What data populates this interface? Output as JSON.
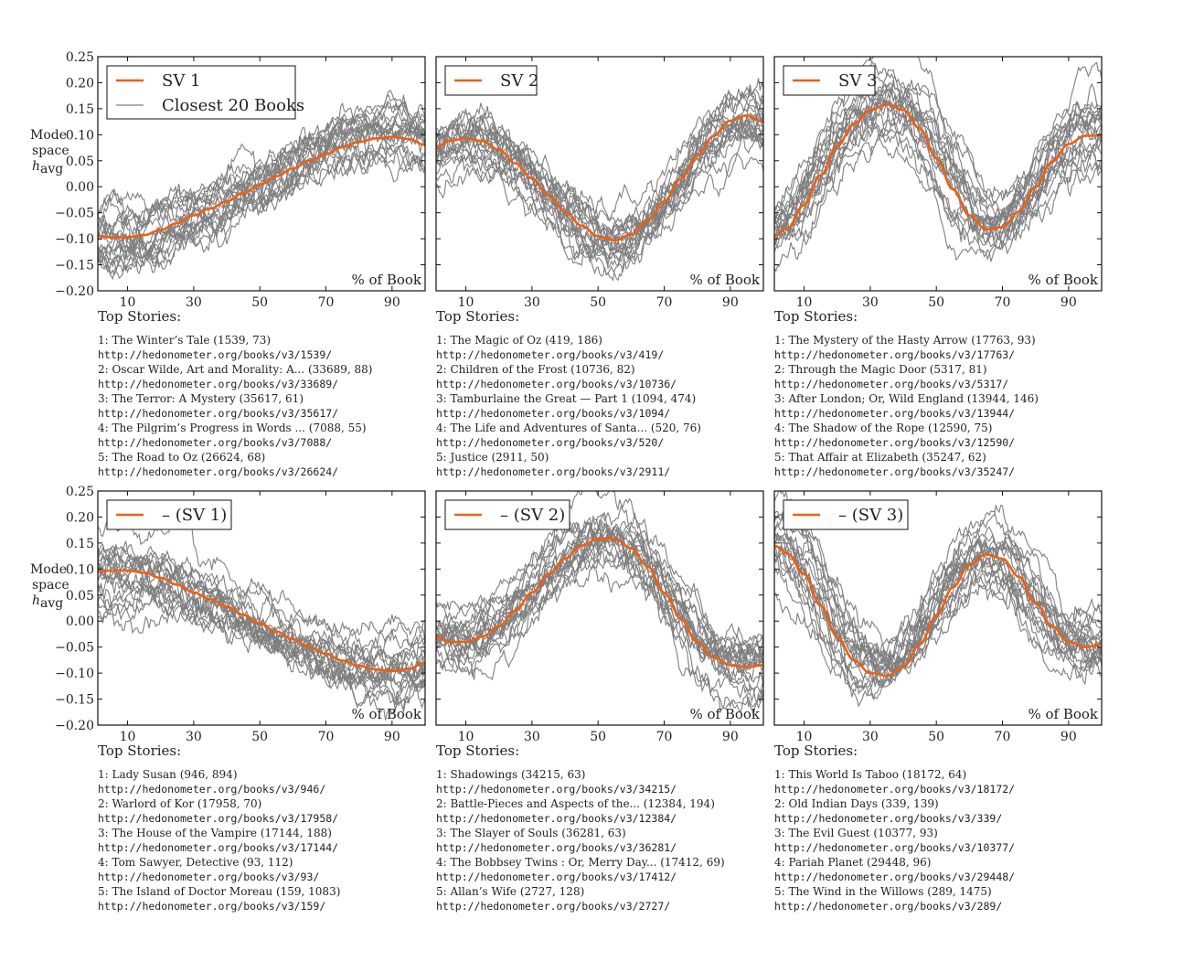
{
  "y_axis_label": {
    "line1": "Mode",
    "line2": "space",
    "line3": "h",
    "line3_sub": "avg"
  },
  "x_axis_annotation": "% of Book",
  "top_stories_header": "Top Stories:",
  "colors": {
    "main_series": "#ee6011",
    "books": "#7f7f7f"
  },
  "chart_data": [
    {
      "type": "line",
      "legend": [
        "SV 1",
        "Closest 20 Books"
      ],
      "ylim": [
        -0.2,
        0.25
      ],
      "xlim": [
        1,
        100
      ],
      "yticks": [
        "0.25",
        "0.20",
        "0.15",
        "0.10",
        "0.05",
        "0.00",
        "−0.05",
        "−0.10",
        "−0.15",
        "−0.20"
      ],
      "xticks": [
        "10",
        "30",
        "50",
        "70",
        "90"
      ],
      "series": [
        {
          "name": "SV 1",
          "x": [
            1,
            5,
            10,
            15,
            20,
            25,
            30,
            35,
            40,
            45,
            50,
            55,
            60,
            65,
            70,
            75,
            80,
            85,
            90,
            95,
            100
          ],
          "y": [
            -0.095,
            -0.097,
            -0.097,
            -0.093,
            -0.083,
            -0.07,
            -0.055,
            -0.042,
            -0.028,
            -0.012,
            0.004,
            0.02,
            0.035,
            0.05,
            0.063,
            0.076,
            0.086,
            0.093,
            0.096,
            0.092,
            0.08
          ]
        }
      ]
    },
    {
      "type": "line",
      "legend": [
        "SV 2"
      ],
      "ylim": [
        -0.2,
        0.25
      ],
      "xlim": [
        1,
        100
      ],
      "yticks": [],
      "xticks": [
        "10",
        "30",
        "50",
        "70",
        "90"
      ],
      "series": [
        {
          "name": "SV 2",
          "x": [
            1,
            5,
            10,
            15,
            20,
            25,
            30,
            35,
            40,
            45,
            50,
            55,
            60,
            65,
            70,
            75,
            80,
            85,
            90,
            95,
            100
          ],
          "y": [
            0.075,
            0.088,
            0.093,
            0.088,
            0.071,
            0.045,
            0.016,
            -0.017,
            -0.048,
            -0.075,
            -0.095,
            -0.103,
            -0.092,
            -0.064,
            -0.028,
            0.015,
            0.06,
            0.098,
            0.127,
            0.137,
            0.125
          ]
        }
      ]
    },
    {
      "type": "line",
      "legend": [
        "SV 3"
      ],
      "ylim": [
        -0.2,
        0.25
      ],
      "xlim": [
        1,
        100
      ],
      "yticks": [],
      "xticks": [
        "10",
        "30",
        "50",
        "70",
        "90"
      ],
      "series": [
        {
          "name": "SV 3",
          "x": [
            1,
            5,
            10,
            15,
            20,
            25,
            30,
            35,
            40,
            45,
            50,
            55,
            60,
            65,
            70,
            75,
            80,
            85,
            90,
            95,
            100
          ],
          "y": [
            -0.095,
            -0.08,
            -0.035,
            0.022,
            0.078,
            0.12,
            0.148,
            0.158,
            0.148,
            0.112,
            0.055,
            -0.005,
            -0.055,
            -0.082,
            -0.078,
            -0.048,
            0.0,
            0.048,
            0.082,
            0.098,
            0.098
          ]
        }
      ]
    },
    {
      "type": "line",
      "legend": [
        "– (SV 1)"
      ],
      "ylim": [
        -0.2,
        0.25
      ],
      "xlim": [
        1,
        100
      ],
      "yticks": [
        "0.25",
        "0.20",
        "0.15",
        "0.10",
        "0.05",
        "0.00",
        "−0.05",
        "−0.10",
        "−0.15",
        "−0.20"
      ],
      "xticks": [
        "10",
        "30",
        "50",
        "70",
        "90"
      ],
      "series": [
        {
          "name": "– (SV 1)",
          "x": [
            1,
            5,
            10,
            15,
            20,
            25,
            30,
            35,
            40,
            45,
            50,
            55,
            60,
            65,
            70,
            75,
            80,
            85,
            90,
            95,
            100
          ],
          "y": [
            0.095,
            0.097,
            0.097,
            0.093,
            0.083,
            0.07,
            0.055,
            0.042,
            0.028,
            0.012,
            -0.004,
            -0.02,
            -0.035,
            -0.05,
            -0.063,
            -0.076,
            -0.086,
            -0.093,
            -0.096,
            -0.092,
            -0.08
          ]
        }
      ]
    },
    {
      "type": "line",
      "legend": [
        "– (SV 2)"
      ],
      "ylim": [
        -0.2,
        0.25
      ],
      "xlim": [
        1,
        100
      ],
      "yticks": [],
      "xticks": [
        "10",
        "30",
        "50",
        "70",
        "90"
      ],
      "series": [
        {
          "name": "– (SV 2)",
          "x": [
            1,
            5,
            10,
            15,
            20,
            25,
            30,
            35,
            40,
            45,
            50,
            55,
            60,
            65,
            70,
            75,
            80,
            85,
            90,
            95,
            100
          ],
          "y": [
            -0.03,
            -0.04,
            -0.04,
            -0.03,
            -0.01,
            0.02,
            0.055,
            0.09,
            0.12,
            0.145,
            0.158,
            0.158,
            0.14,
            0.105,
            0.055,
            0.005,
            -0.04,
            -0.07,
            -0.085,
            -0.088,
            -0.085
          ]
        }
      ]
    },
    {
      "type": "line",
      "legend": [
        "– (SV 3)"
      ],
      "ylim": [
        -0.2,
        0.25
      ],
      "xlim": [
        1,
        100
      ],
      "yticks": [],
      "xticks": [
        "10",
        "30",
        "50",
        "70",
        "90"
      ],
      "series": [
        {
          "name": "– (SV 3)",
          "x": [
            1,
            5,
            10,
            15,
            20,
            25,
            30,
            35,
            40,
            45,
            50,
            55,
            60,
            65,
            70,
            75,
            80,
            85,
            90,
            95,
            100
          ],
          "y": [
            0.145,
            0.13,
            0.09,
            0.03,
            -0.03,
            -0.075,
            -0.1,
            -0.105,
            -0.088,
            -0.045,
            0.01,
            0.065,
            0.108,
            0.128,
            0.12,
            0.085,
            0.035,
            -0.01,
            -0.04,
            -0.05,
            -0.045
          ]
        }
      ]
    }
  ],
  "stories": [
    [
      {
        "title": "1: The Winter’s Tale (1539, 73)",
        "url": "http://hedonometer.org/books/v3/1539/"
      },
      {
        "title": "2: Oscar Wilde, Art and Morality: A... (33689, 88)",
        "url": "http://hedonometer.org/books/v3/33689/"
      },
      {
        "title": "3: The Terror: A Mystery (35617, 61)",
        "url": "http://hedonometer.org/books/v3/35617/"
      },
      {
        "title": "4: The Pilgrim’s Progress in Words ... (7088, 55)",
        "url": "http://hedonometer.org/books/v3/7088/"
      },
      {
        "title": "5: The Road to Oz (26624, 68)",
        "url": "http://hedonometer.org/books/v3/26624/"
      }
    ],
    [
      {
        "title": "1: The Magic of Oz (419, 186)",
        "url": "http://hedonometer.org/books/v3/419/"
      },
      {
        "title": "2: Children of the Frost (10736, 82)",
        "url": "http://hedonometer.org/books/v3/10736/"
      },
      {
        "title": "3: Tamburlaine the Great — Part 1 (1094, 474)",
        "url": "http://hedonometer.org/books/v3/1094/"
      },
      {
        "title": "4: The Life and Adventures of Santa... (520, 76)",
        "url": "http://hedonometer.org/books/v3/520/"
      },
      {
        "title": "5: Justice (2911, 50)",
        "url": "http://hedonometer.org/books/v3/2911/"
      }
    ],
    [
      {
        "title": "1: The Mystery of the Hasty Arrow (17763, 93)",
        "url": "http://hedonometer.org/books/v3/17763/"
      },
      {
        "title": "2: Through the Magic Door (5317, 81)",
        "url": "http://hedonometer.org/books/v3/5317/"
      },
      {
        "title": "3: After London; Or, Wild England (13944, 146)",
        "url": "http://hedonometer.org/books/v3/13944/"
      },
      {
        "title": "4: The Shadow of the Rope (12590, 75)",
        "url": "http://hedonometer.org/books/v3/12590/"
      },
      {
        "title": "5: That Affair at Elizabeth (35247, 62)",
        "url": "http://hedonometer.org/books/v3/35247/"
      }
    ],
    [
      {
        "title": "1: Lady Susan (946, 894)",
        "url": "http://hedonometer.org/books/v3/946/"
      },
      {
        "title": "2: Warlord of Kor (17958, 70)",
        "url": "http://hedonometer.org/books/v3/17958/"
      },
      {
        "title": "3: The House of the Vampire (17144, 188)",
        "url": "http://hedonometer.org/books/v3/17144/"
      },
      {
        "title": "4: Tom Sawyer, Detective (93, 112)",
        "url": "http://hedonometer.org/books/v3/93/"
      },
      {
        "title": "5: The Island of Doctor Moreau (159, 1083)",
        "url": "http://hedonometer.org/books/v3/159/"
      }
    ],
    [
      {
        "title": "1: Shadowings (34215, 63)",
        "url": "http://hedonometer.org/books/v3/34215/"
      },
      {
        "title": "2: Battle-Pieces and Aspects of the... (12384, 194)",
        "url": "http://hedonometer.org/books/v3/12384/"
      },
      {
        "title": "3: The Slayer of Souls (36281, 63)",
        "url": "http://hedonometer.org/books/v3/36281/"
      },
      {
        "title": "4: The Bobbsey Twins : Or, Merry Day... (17412, 69)",
        "url": "http://hedonometer.org/books/v3/17412/"
      },
      {
        "title": "5: Allan’s Wife (2727, 128)",
        "url": "http://hedonometer.org/books/v3/2727/"
      }
    ],
    [
      {
        "title": "1: This World Is Taboo (18172, 64)",
        "url": "http://hedonometer.org/books/v3/18172/"
      },
      {
        "title": "2: Old Indian Days (339, 139)",
        "url": "http://hedonometer.org/books/v3/339/"
      },
      {
        "title": "3: The Evil Guest (10377, 93)",
        "url": "http://hedonometer.org/books/v3/10377/"
      },
      {
        "title": "4: Pariah Planet (29448, 96)",
        "url": "http://hedonometer.org/books/v3/29448/"
      },
      {
        "title": "5: The Wind in the Willows (289, 1475)",
        "url": "http://hedonometer.org/books/v3/289/"
      }
    ]
  ]
}
